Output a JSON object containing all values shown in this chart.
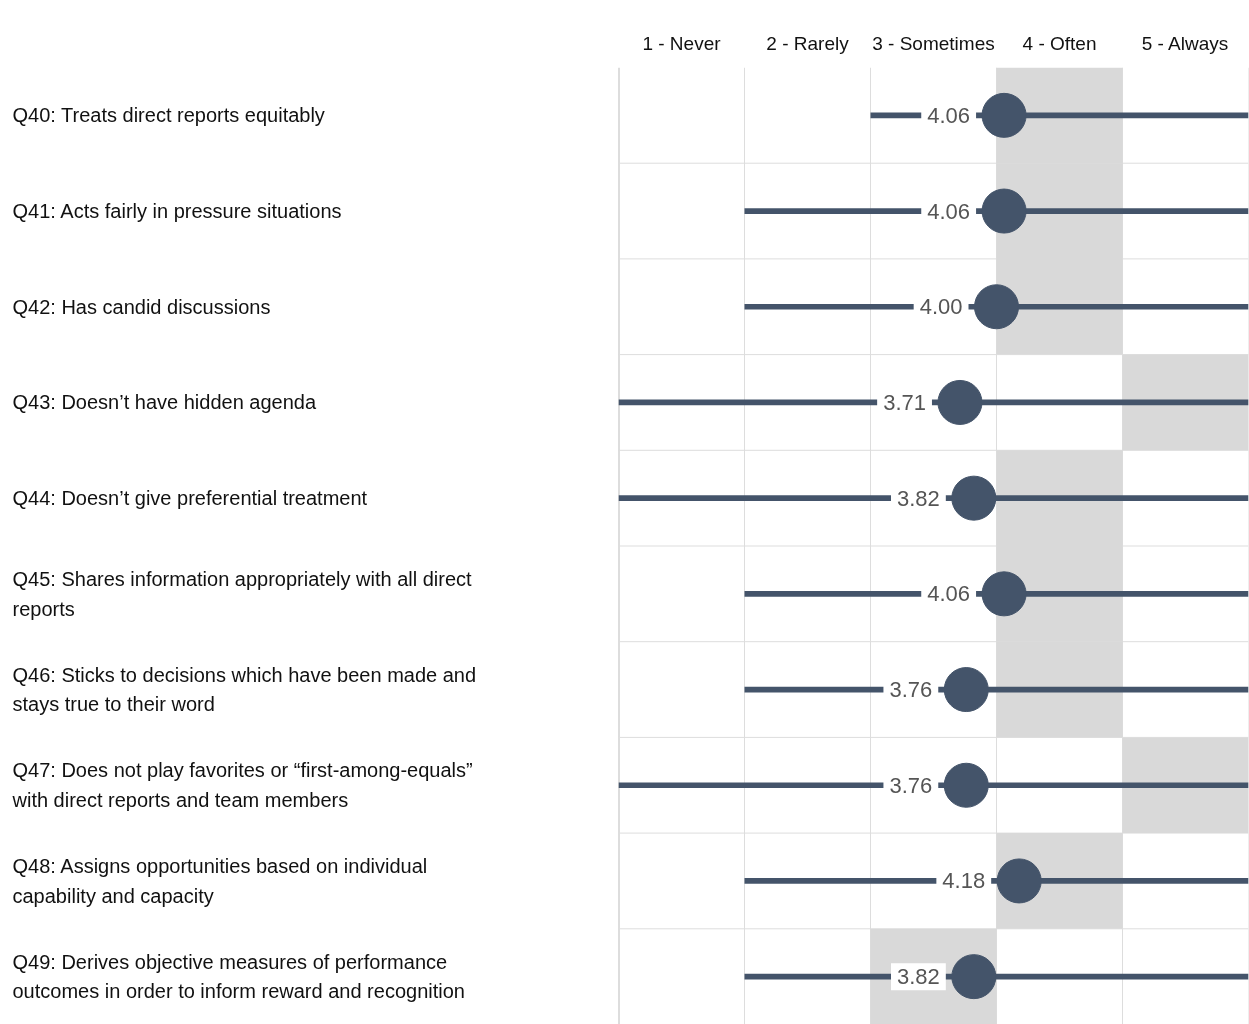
{
  "chart_data": {
    "type": "bar",
    "orientation": "horizontal",
    "categories": [
      "Q40: Treats direct reports equitably",
      "Q41: Acts fairly in pressure situations",
      "Q42: Has candid discussions",
      "Q43: Doesn’t have hidden agenda",
      "Q44: Doesn’t give preferential treatment",
      "Q45: Shares information appropriately with all direct reports",
      "Q46: Sticks to decisions which have been made and stays true to their word",
      "Q47: Does not play favorites or “first-among-equals” with direct reports and team members",
      "Q48: Assigns opportunities based on individual capability and capacity",
      "Q49: Derives objective measures of performance outcomes in order to inform reward and recognition"
    ],
    "xlim": [
      1,
      6
    ],
    "xticks": [
      {
        "value": 1,
        "label": null
      },
      {
        "value": 1.5,
        "label": "1 - Never"
      },
      {
        "value": 2,
        "label": null
      },
      {
        "value": 2.5,
        "label": "2 - Rarely"
      },
      {
        "value": 3,
        "label": null
      },
      {
        "value": 3.5,
        "label": "3 - Sometimes"
      },
      {
        "value": 4,
        "label": null
      },
      {
        "value": 4.5,
        "label": "4 - Often"
      },
      {
        "value": 5,
        "label": null
      },
      {
        "value": 5.5,
        "label": "5 - Always"
      },
      {
        "value": 6,
        "label": null
      }
    ],
    "grid": true,
    "series": [
      {
        "color": "#d9d9d9",
        "base": [
          4,
          4,
          4,
          5,
          4,
          4,
          4,
          5,
          4,
          3
        ],
        "values": [
          1,
          1,
          1,
          1,
          1,
          1,
          1,
          1,
          1,
          1
        ]
      },
      {
        "color": "#44546a",
        "base": [
          3,
          2,
          2,
          1,
          1,
          2,
          2,
          1,
          2,
          2
        ],
        "values": [
          3,
          4,
          4,
          5,
          5,
          4,
          4,
          5,
          4,
          4
        ]
      },
      {
        "type": "scatter",
        "color": "#44546a",
        "marker": "circle",
        "values": [
          4.06,
          4.06,
          4.0,
          3.71,
          3.82,
          4.06,
          3.76,
          3.76,
          4.18,
          3.82
        ],
        "value_labels": [
          "4.06",
          "4.06",
          "4.00",
          "3.71",
          "3.82",
          "4.06",
          "3.76",
          "3.76",
          "4.18",
          "3.82"
        ]
      }
    ]
  }
}
